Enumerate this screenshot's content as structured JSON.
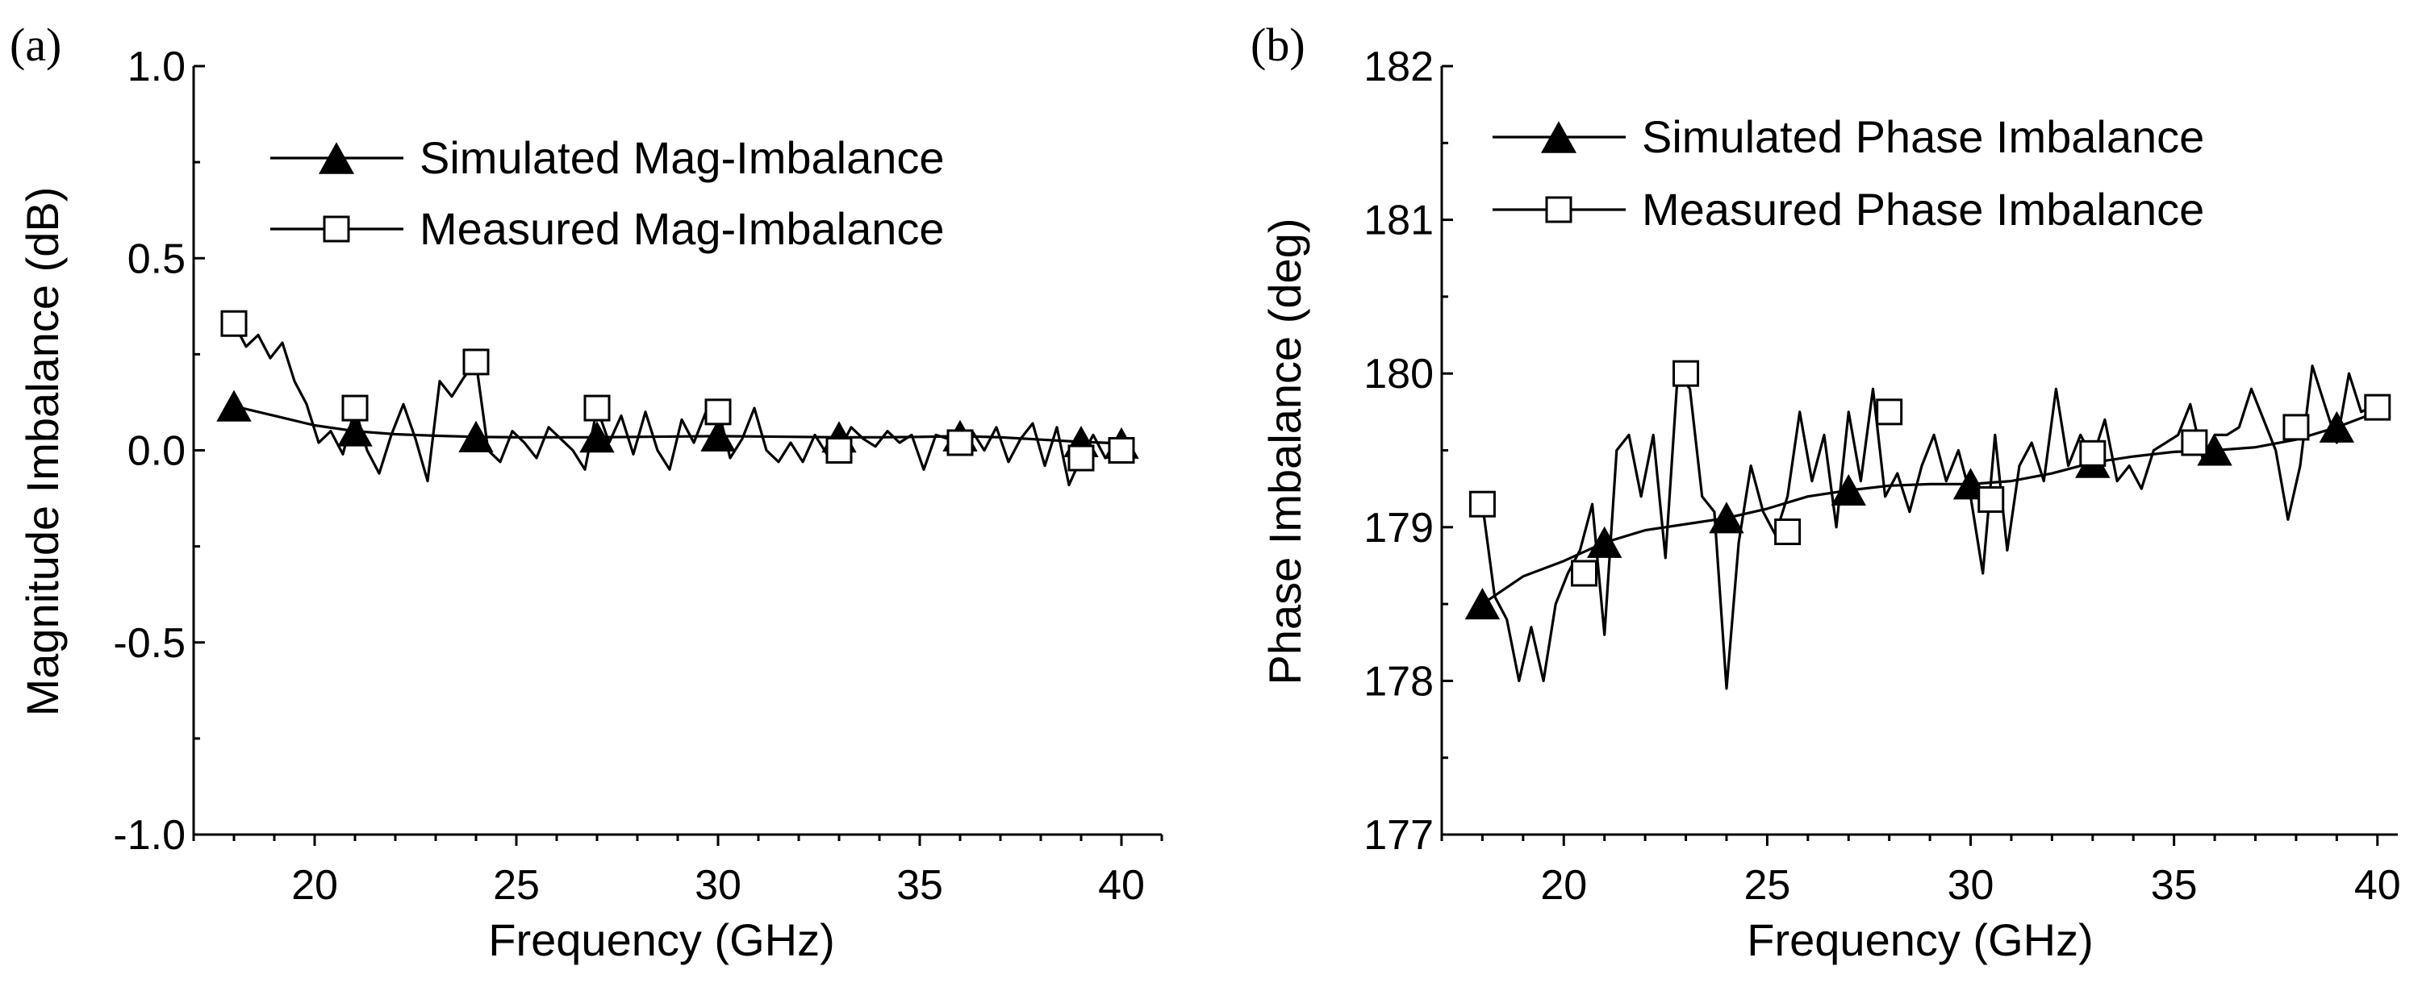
{
  "chart_data": [
    {
      "type": "line",
      "panel_label": "(a)",
      "xlabel": "Frequency (GHz)",
      "ylabel": "Magnitude Imbalance (dB)",
      "xlim": [
        17,
        41
      ],
      "ylim": [
        -1.0,
        1.0
      ],
      "x_ticks": [
        20,
        25,
        30,
        35,
        40
      ],
      "x_tick_labels": [
        "20",
        "25",
        "30",
        "35",
        "40"
      ],
      "y_ticks": [
        -1.0,
        -0.5,
        0.0,
        0.5,
        1.0
      ],
      "y_tick_labels": [
        "-1.0",
        "-0.5",
        "0.0",
        "0.5",
        "1.0"
      ],
      "legend_position": "top-right",
      "series": [
        {
          "name": "Simulated Mag-Imbalance",
          "marker": "filled-triangle",
          "x": [
            18,
            19,
            20,
            21,
            22,
            23,
            24,
            25,
            26,
            27,
            28,
            29,
            30,
            31,
            32,
            33,
            34,
            35,
            36,
            37,
            38,
            39,
            40
          ],
          "values": [
            0.115,
            0.09,
            0.065,
            0.05,
            0.042,
            0.038,
            0.035,
            0.034,
            0.034,
            0.034,
            0.035,
            0.036,
            0.037,
            0.036,
            0.035,
            0.034,
            0.034,
            0.035,
            0.037,
            0.034,
            0.028,
            0.022,
            0.018
          ],
          "marker_x": [
            18,
            21,
            24,
            27,
            30,
            33,
            36,
            39,
            40
          ],
          "marker_values": [
            0.115,
            0.05,
            0.035,
            0.034,
            0.037,
            0.034,
            0.037,
            0.022,
            0.018
          ]
        },
        {
          "name": "Measured Mag-Imbalance",
          "marker": "open-square",
          "x": [
            18,
            18.3,
            18.6,
            18.9,
            19.2,
            19.5,
            19.8,
            20.1,
            20.4,
            20.7,
            21,
            21.3,
            21.6,
            21.9,
            22.2,
            22.5,
            22.8,
            23.1,
            23.4,
            23.7,
            24,
            24.3,
            24.6,
            24.9,
            25.2,
            25.5,
            25.8,
            26.1,
            26.4,
            26.7,
            27,
            27.3,
            27.6,
            27.9,
            28.2,
            28.5,
            28.8,
            29.1,
            29.4,
            29.7,
            30,
            30.3,
            30.6,
            30.9,
            31.2,
            31.5,
            31.8,
            32.1,
            32.4,
            32.7,
            33,
            33.3,
            33.6,
            33.9,
            34.2,
            34.5,
            34.8,
            35.1,
            35.4,
            35.7,
            36,
            36.3,
            36.6,
            36.9,
            37.2,
            37.5,
            37.8,
            38.1,
            38.4,
            38.7,
            39,
            39.3,
            39.6,
            40
          ],
          "values": [
            0.33,
            0.27,
            0.3,
            0.24,
            0.28,
            0.18,
            0.12,
            0.02,
            0.05,
            -0.01,
            0.11,
            0.0,
            -0.06,
            0.04,
            0.12,
            0.03,
            -0.08,
            0.18,
            0.14,
            0.19,
            0.23,
            0.0,
            -0.03,
            0.05,
            0.02,
            -0.02,
            0.06,
            0.03,
            0.0,
            -0.05,
            0.11,
            0.02,
            0.09,
            -0.01,
            0.1,
            0.0,
            -0.05,
            0.08,
            0.02,
            0.1,
            0.11,
            -0.02,
            0.03,
            0.11,
            0.0,
            -0.03,
            0.02,
            -0.03,
            0.04,
            -0.01,
            0.0,
            0.06,
            0.03,
            0.01,
            0.05,
            0.02,
            0.04,
            -0.05,
            0.04,
            0.03,
            0.02,
            0.05,
            0.0,
            0.06,
            -0.03,
            0.03,
            0.07,
            -0.04,
            0.06,
            -0.09,
            -0.02,
            0.04,
            -0.02,
            0.0
          ],
          "marker_x": [
            18,
            21,
            24,
            27,
            30,
            33,
            36,
            39,
            40
          ],
          "marker_values": [
            0.33,
            0.11,
            0.23,
            0.11,
            0.1,
            0.0,
            0.02,
            -0.02,
            0.0
          ]
        }
      ]
    },
    {
      "type": "line",
      "panel_label": "(b)",
      "xlabel": "Frequency (GHz)",
      "ylabel": "Phase Imbalance  (deg)",
      "xlim": [
        17,
        40.5
      ],
      "ylim": [
        177,
        182
      ],
      "x_ticks": [
        20,
        25,
        30,
        35,
        40
      ],
      "x_tick_labels": [
        "20",
        "25",
        "30",
        "35",
        "40"
      ],
      "y_ticks": [
        177,
        178,
        179,
        180,
        181,
        182
      ],
      "y_tick_labels": [
        "177",
        "178",
        "179",
        "180",
        "181",
        "182"
      ],
      "legend_position": "top-right",
      "series": [
        {
          "name": "Simulated Phase Imbalance",
          "marker": "filled-triangle",
          "x": [
            18,
            19,
            20,
            21,
            22,
            23,
            24,
            25,
            26,
            27,
            28,
            29,
            30,
            31,
            32,
            33,
            34,
            35,
            36,
            37,
            38,
            39,
            40
          ],
          "values": [
            178.5,
            178.68,
            178.78,
            178.9,
            178.98,
            179.02,
            179.06,
            179.12,
            179.2,
            179.24,
            179.27,
            179.28,
            179.28,
            179.3,
            179.35,
            179.42,
            179.46,
            179.49,
            179.5,
            179.52,
            179.57,
            179.65,
            179.75
          ],
          "marker_x": [
            18,
            21,
            24,
            27,
            30,
            33,
            36,
            39
          ],
          "marker_values": [
            178.5,
            178.9,
            179.06,
            179.24,
            179.28,
            179.42,
            179.5,
            179.65
          ]
        },
        {
          "name": "Measured Phase Imbalance",
          "marker": "open-square",
          "x": [
            18,
            18.3,
            18.6,
            18.9,
            19.2,
            19.5,
            19.8,
            20.1,
            20.4,
            20.7,
            21,
            21.3,
            21.6,
            21.9,
            22.2,
            22.5,
            22.8,
            23.1,
            23.4,
            23.7,
            24,
            24.3,
            24.6,
            24.9,
            25.2,
            25.5,
            25.8,
            26.1,
            26.4,
            26.7,
            27,
            27.3,
            27.6,
            27.9,
            28.2,
            28.5,
            28.8,
            29.1,
            29.4,
            29.7,
            30,
            30.3,
            30.6,
            30.9,
            31.2,
            31.5,
            31.8,
            32.1,
            32.4,
            32.7,
            33,
            33.3,
            33.6,
            33.9,
            34.2,
            34.5,
            34.8,
            35.1,
            35.4,
            35.7,
            36,
            36.3,
            36.6,
            36.9,
            37.2,
            37.5,
            37.8,
            38.1,
            38.4,
            38.7,
            39,
            39.3,
            39.6,
            40
          ],
          "values": [
            179.15,
            178.55,
            178.4,
            178.0,
            178.35,
            178.0,
            178.5,
            178.7,
            178.85,
            179.15,
            178.3,
            179.5,
            179.6,
            179.2,
            179.6,
            178.8,
            180.0,
            179.9,
            179.2,
            179.1,
            177.95,
            178.9,
            179.4,
            179.1,
            178.95,
            179.2,
            179.75,
            179.3,
            179.6,
            179.0,
            179.75,
            179.3,
            179.9,
            179.2,
            179.35,
            179.1,
            179.4,
            179.6,
            179.3,
            179.5,
            179.2,
            178.7,
            179.6,
            178.85,
            179.4,
            179.55,
            179.3,
            179.9,
            179.4,
            179.6,
            179.45,
            179.7,
            179.3,
            179.4,
            179.25,
            179.5,
            179.55,
            179.6,
            179.8,
            179.45,
            179.6,
            179.6,
            179.65,
            179.9,
            179.7,
            179.5,
            179.05,
            179.4,
            180.05,
            179.8,
            179.55,
            180.0,
            179.75,
            179.8
          ],
          "marker_x": [
            18,
            20.5,
            23,
            25.5,
            28,
            30.5,
            33,
            35.5,
            38,
            40
          ],
          "marker_values": [
            179.15,
            178.7,
            180.0,
            178.97,
            179.75,
            179.18,
            179.48,
            179.55,
            179.65,
            179.78
          ]
        }
      ]
    }
  ]
}
